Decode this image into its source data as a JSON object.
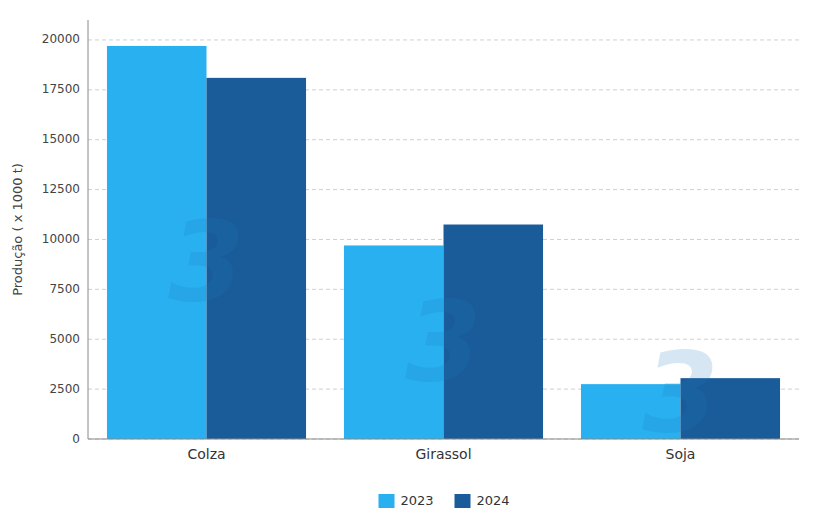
{
  "chart_data": {
    "type": "bar",
    "categories": [
      "Colza",
      "Girassol",
      "Soja"
    ],
    "series": [
      {
        "name": "2023",
        "color": "#29b0f0",
        "values": [
          19700,
          9700,
          2750
        ]
      },
      {
        "name": "2024",
        "color": "#1a5c9a",
        "values": [
          18100,
          10750,
          3050
        ]
      }
    ],
    "ylabel": "Produção ( x 1000 t)",
    "ylim": [
      0,
      21000
    ],
    "yticks": [
      0,
      2500,
      5000,
      7500,
      10000,
      12500,
      15000,
      17500,
      20000
    ],
    "grid": true,
    "legend": "bottom",
    "annotations": [
      {
        "text": "3",
        "color": "#1a7abf"
      },
      {
        "text": "3",
        "color": "#1a7abf"
      },
      {
        "text": "3",
        "color": "#1a7abf"
      }
    ]
  }
}
